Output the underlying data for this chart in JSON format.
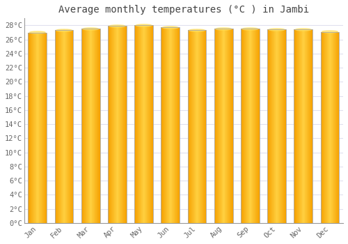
{
  "title": "Average monthly temperatures (°C ) in Jambi",
  "months": [
    "Jan",
    "Feb",
    "Mar",
    "Apr",
    "May",
    "Jun",
    "Jul",
    "Aug",
    "Sep",
    "Oct",
    "Nov",
    "Dec"
  ],
  "values": [
    27.0,
    27.3,
    27.5,
    27.9,
    28.0,
    27.7,
    27.3,
    27.5,
    27.5,
    27.4,
    27.4,
    27.1
  ],
  "ylim": [
    0,
    29
  ],
  "yticks": [
    0,
    2,
    4,
    6,
    8,
    10,
    12,
    14,
    16,
    18,
    20,
    22,
    24,
    26,
    28
  ],
  "ytick_labels": [
    "0°C",
    "2°C",
    "4°C",
    "6°C",
    "8°C",
    "10°C",
    "12°C",
    "14°C",
    "16°C",
    "18°C",
    "20°C",
    "22°C",
    "24°C",
    "26°C",
    "28°C"
  ],
  "background_color": "#ffffff",
  "grid_color": "#e0e0ee",
  "title_fontsize": 10,
  "tick_fontsize": 7.5,
  "bar_width": 0.7,
  "bar_color_center": "#FFD040",
  "bar_color_edge": "#F5A000",
  "bar_border_color": "#aaaaaa",
  "figsize": [
    5.0,
    3.5
  ],
  "dpi": 100
}
